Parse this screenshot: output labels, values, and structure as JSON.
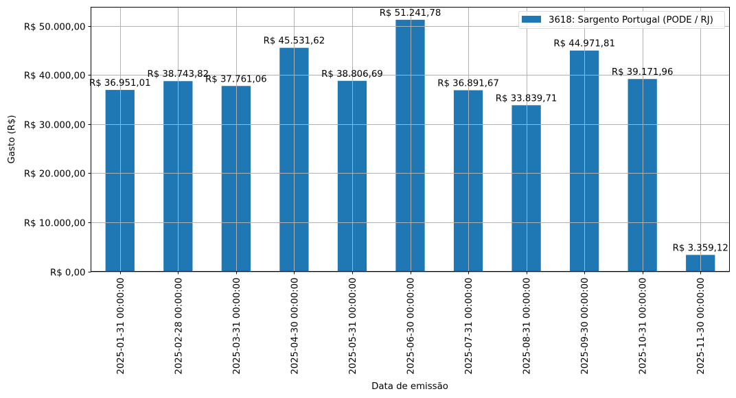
{
  "chart_data": {
    "type": "bar",
    "title": "",
    "xlabel": "Data de emissão",
    "ylabel": "Gasto (R$)",
    "ylim": [
      0,
      53800
    ],
    "yticks": [
      0,
      10000,
      20000,
      30000,
      40000,
      50000
    ],
    "ytick_labels": [
      "R$ 0,00",
      "R$ 10.000,00",
      "R$ 20.000,00",
      "R$ 30.000,00",
      "R$ 40.000,00",
      "R$ 50.000,00"
    ],
    "grid": true,
    "legend_position": "upper right",
    "categories": [
      "2025-01-31 00:00:00",
      "2025-02-28 00:00:00",
      "2025-03-31 00:00:00",
      "2025-04-30 00:00:00",
      "2025-05-31 00:00:00",
      "2025-06-30 00:00:00",
      "2025-07-31 00:00:00",
      "2025-08-31 00:00:00",
      "2025-09-30 00:00:00",
      "2025-10-31 00:00:00",
      "2025-11-30 00:00:00"
    ],
    "series": [
      {
        "name": "3618: Sargento Portugal (PODE / RJ)",
        "color": "#1f77b4",
        "values": [
          36951.01,
          38743.82,
          37761.06,
          45531.62,
          38806.69,
          51241.78,
          36891.67,
          33839.71,
          44971.81,
          39171.96,
          3359.12
        ],
        "labels": [
          "R$ 36.951,01",
          "R$ 38.743,82",
          "R$ 37.761,06",
          "R$ 45.531,62",
          "R$ 38.806,69",
          "R$ 51.241,78",
          "R$ 36.891,67",
          "R$ 33.839,71",
          "R$ 44.971,81",
          "R$ 39.171,96",
          "R$ 3.359,12"
        ]
      }
    ]
  },
  "colors": {
    "bar": "#1f77b4",
    "grid": "#b0b0b0",
    "axis": "#000000"
  }
}
